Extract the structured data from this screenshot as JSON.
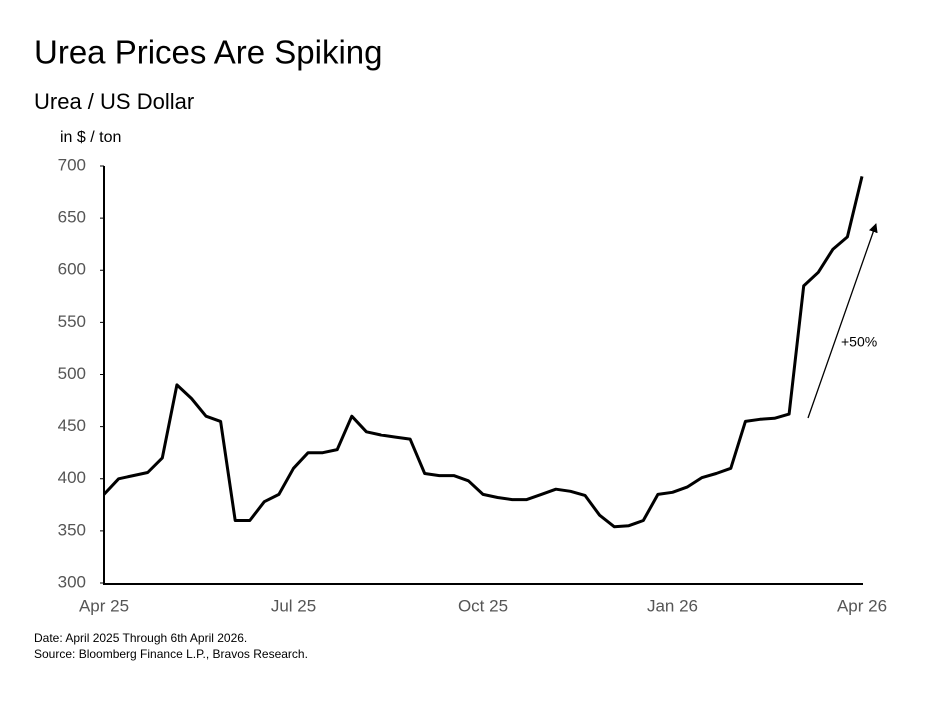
{
  "chart_data": {
    "type": "line",
    "title": "Urea Prices Are Spiking",
    "subtitle": "Urea / US Dollar",
    "y_label": "in $ / ton",
    "annotation": "+50%",
    "notes": [
      "Date: April 2025 Through 6th April 2026.",
      "Source: Bloomberg Finance L.P., Bravos Research."
    ],
    "categories": [
      "Apr 25",
      null,
      null,
      null,
      null,
      null,
      null,
      null,
      null,
      null,
      null,
      null,
      null,
      "Jul 25",
      null,
      null,
      null,
      null,
      null,
      null,
      null,
      null,
      null,
      null,
      null,
      null,
      "Oct 25",
      null,
      null,
      null,
      null,
      null,
      null,
      null,
      null,
      null,
      null,
      null,
      null,
      "Jan 26",
      null,
      null,
      null,
      null,
      null,
      null,
      null,
      null,
      null,
      null,
      null,
      null,
      "Apr 26"
    ],
    "series": [
      {
        "name": "Urea",
        "color": "#000000",
        "values": [
          385,
          400,
          403,
          406,
          420,
          490,
          477,
          460,
          455,
          360,
          360,
          378,
          385,
          410,
          425,
          425,
          428,
          460,
          445,
          442,
          440,
          438,
          405,
          403,
          403,
          398,
          385,
          382,
          380,
          380,
          385,
          390,
          388,
          384,
          365,
          354,
          355,
          360,
          385,
          387,
          392,
          401,
          405,
          410,
          455,
          457,
          458,
          462,
          585,
          598,
          620,
          632,
          690
        ]
      }
    ],
    "ylim": [
      300,
      700
    ],
    "yticks": [
      300,
      350,
      400,
      450,
      500,
      550,
      600,
      650,
      700
    ],
    "grid": false
  }
}
